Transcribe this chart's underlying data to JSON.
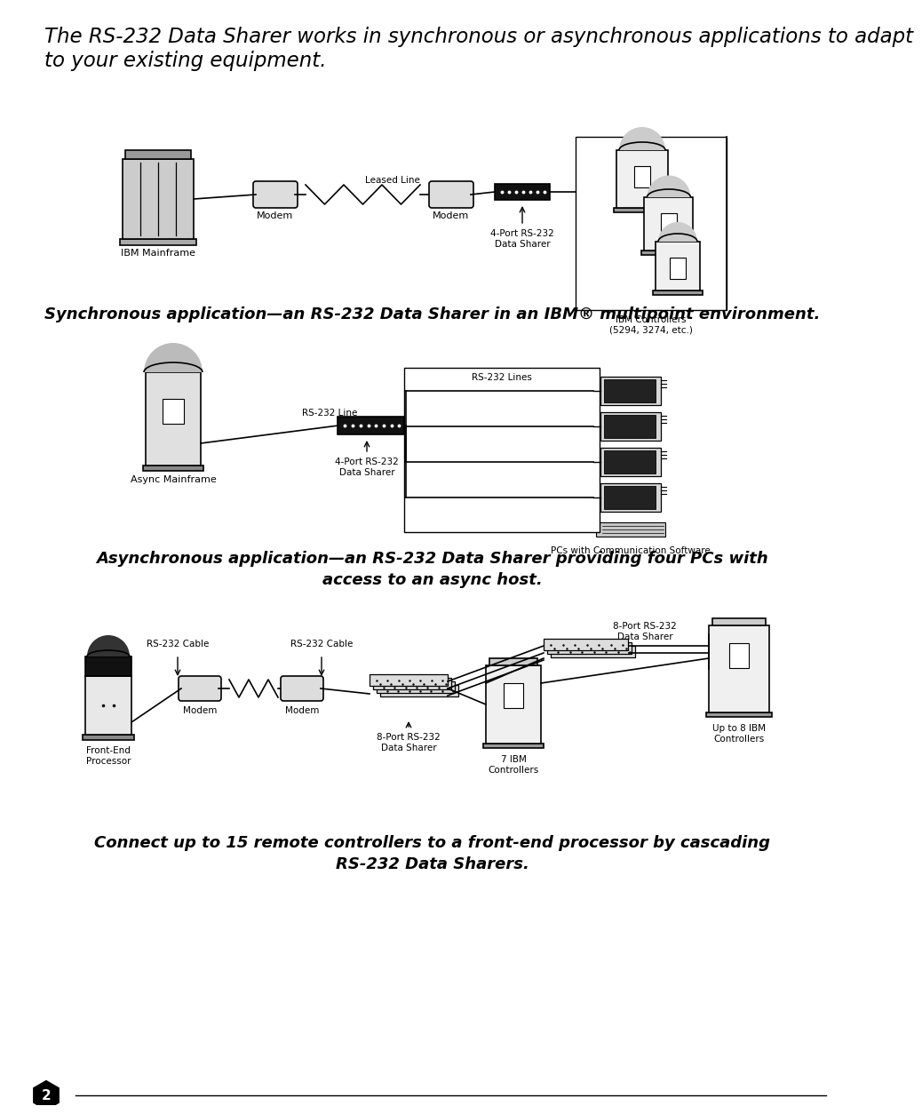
{
  "bg_color": "#ffffff",
  "title_text": "The RS-232 Data Sharer works in synchronous or asynchronous applications to adapt\nto your existing equipment.",
  "title_fontsize": 16.5,
  "caption1": "Synchronous application—an RS-232 Data Sharer in an IBM® multipoint environment.",
  "caption1_fontsize": 13,
  "caption2_line1": "Asynchronous application—an RS-232 Data Sharer providing four PCs with",
  "caption2_line2": "access to an async host.",
  "caption2_fontsize": 13,
  "caption3_line1": "Connect up to 15 remote controllers to a front-end processor by cascading",
  "caption3_line2": "RS-232 Data Sharers.",
  "caption3_fontsize": 13,
  "page_number": "2",
  "d1_ibm_mainframe": "IBM Mainframe",
  "d1_modem1": "Modem",
  "d1_modem2": "Modem",
  "d1_leased_line": "Leased Line",
  "d1_data_sharer": "4-Port RS-232\nData Sharer",
  "d1_ibm_controllers": "IBM Controllers\n(5294, 3274, etc.)",
  "d2_async_mainframe": "Async Mainframe",
  "d2_rs232_line": "RS-232 Line",
  "d2_rs232_lines": "RS-232 Lines",
  "d2_data_sharer": "4-Port RS-232\nData Sharer",
  "d2_pcs": "PCs with Communication Software",
  "d3_rs232_cable1": "RS-232 Cable",
  "d3_rs232_cable2": "RS-232 Cable",
  "d3_modem1": "Modem",
  "d3_modem2": "Modem",
  "d3_front_end": "Front-End\nProcessor",
  "d3_data_sharer_local": "8-Port RS-232\nData Sharer",
  "d3_data_sharer_remote": "8-Port RS-232\nData Sharer",
  "d3_ibm7": "7 IBM\nControllers",
  "d3_ibm8": "Up to 8 IBM\nControllers"
}
